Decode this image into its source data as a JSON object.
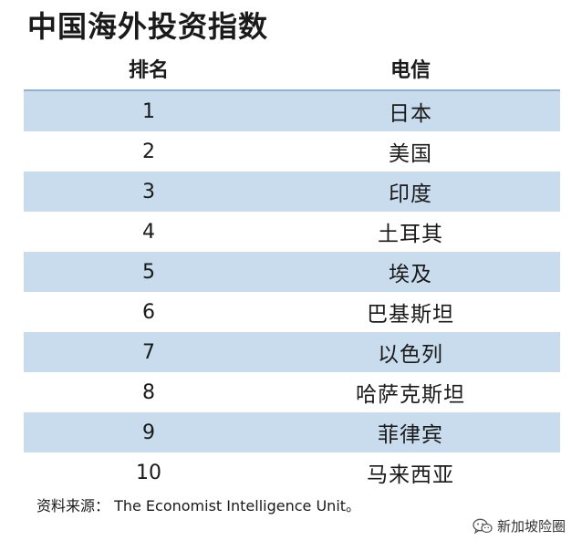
{
  "title": "中国海外投资指数",
  "headers": {
    "rank": "排名",
    "name": "电信"
  },
  "rows": [
    {
      "rank": "1",
      "name": "日本"
    },
    {
      "rank": "2",
      "name": "美国"
    },
    {
      "rank": "3",
      "name": "印度"
    },
    {
      "rank": "4",
      "name": "土耳其"
    },
    {
      "rank": "5",
      "name": "埃及"
    },
    {
      "rank": "6",
      "name": "巴基斯坦"
    },
    {
      "rank": "7",
      "name": "以色列"
    },
    {
      "rank": "8",
      "name": "哈萨克斯坦"
    },
    {
      "rank": "9",
      "name": "菲律宾"
    },
    {
      "rank": "10",
      "name": "马来西亚"
    }
  ],
  "source": "资料来源： The Economist Intelligence Unit。",
  "watermark": {
    "text": "新加坡险圈",
    "icon": "wechat-icon"
  },
  "colors": {
    "row_shade": "#c9dced",
    "row_plain": "#ffffff",
    "header_rule": "#8fb3cf"
  }
}
